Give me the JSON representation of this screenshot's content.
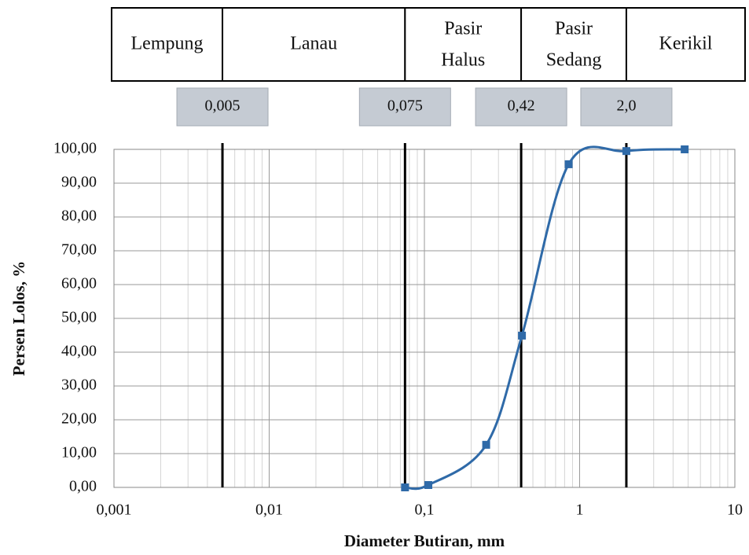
{
  "chart_data": {
    "type": "line",
    "x_label": "Diameter Butiran, mm",
    "y_label": "Persen Lolos, %",
    "x_log": true,
    "grid": true,
    "x": [
      0.075,
      0.106,
      0.25,
      0.425,
      0.85,
      2.0,
      4.75
    ],
    "series": [
      {
        "color": "#2f6aa8",
        "values": [
          0,
          0.7,
          12.6,
          44.9,
          95.6,
          99.5,
          100
        ]
      }
    ],
    "xlim": [
      0.001,
      10
    ],
    "xticks": [
      {
        "value": 0.001,
        "label": "0,001"
      },
      {
        "value": 0.01,
        "label": "0,01"
      },
      {
        "value": 0.1,
        "label": "0,1"
      },
      1,
      10
    ],
    "ylim": [
      0,
      100
    ],
    "yticks": [
      {
        "value": 0,
        "label": "0,00"
      },
      {
        "value": 10,
        "label": "10,00"
      },
      {
        "value": 20,
        "label": "20,00"
      },
      {
        "value": 30,
        "label": "30,00"
      },
      {
        "value": 40,
        "label": "40,00"
      },
      {
        "value": 50,
        "label": "50,00"
      },
      {
        "value": 60,
        "label": "60,00"
      },
      {
        "value": 70,
        "label": "70,00"
      },
      {
        "value": 80,
        "label": "80,00"
      },
      {
        "value": 90,
        "label": "90,00"
      },
      {
        "value": 100,
        "label": "100,00"
      }
    ],
    "boundaries": [
      {
        "value": 0.005,
        "label": "0,005"
      },
      {
        "value": 0.075,
        "label": "0,075"
      },
      {
        "value": 0.42,
        "label": "0,42"
      },
      {
        "value": 2.0,
        "label": "2,0"
      }
    ],
    "soil_classes": [
      [
        "Lempung"
      ],
      [
        "Lanau"
      ],
      [
        "Pasir",
        "Halus"
      ],
      [
        "Pasir",
        "Sedang"
      ],
      [
        "Kerikil"
      ]
    ]
  }
}
